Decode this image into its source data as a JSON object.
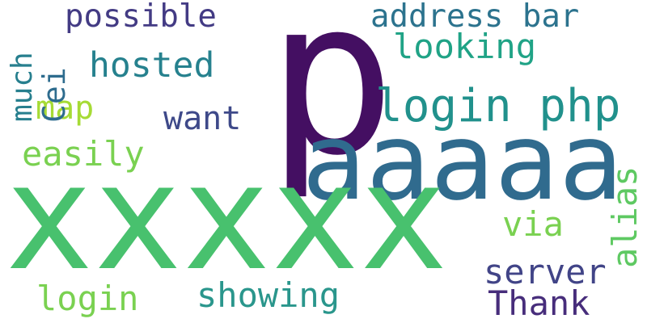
{
  "words": {
    "p": {
      "text": "p",
      "color": "#440f62"
    },
    "aaaaa": {
      "text": "aaaaa",
      "color": "#306b8e"
    },
    "xxxxx": {
      "text": "xxxxx",
      "color": "#48c16e"
    },
    "login_php": {
      "text": "login php",
      "color": "#21918c"
    },
    "possible": {
      "text": "possible",
      "color": "#433b84"
    },
    "address_bar": {
      "text": "address bar",
      "color": "#2c738e"
    },
    "looking": {
      "text": "looking",
      "color": "#20a386"
    },
    "hosted": {
      "text": "hosted",
      "color": "#26818e"
    },
    "map": {
      "text": "map",
      "color": "#a6db35"
    },
    "want": {
      "text": "want",
      "color": "#3e4989"
    },
    "easily": {
      "text": "easily",
      "color": "#7ad151"
    },
    "much": {
      "text": "much",
      "color": "#277f8e"
    },
    "cei": {
      "text": "Cei",
      "color": "#2e6c8e"
    },
    "via": {
      "text": "via",
      "color": "#7ad151"
    },
    "alias": {
      "text": "alias",
      "color": "#5ec962"
    },
    "server": {
      "text": "server",
      "color": "#414487"
    },
    "thank": {
      "text": "Thank",
      "color": "#472d7b"
    },
    "showing": {
      "text": "showing",
      "color": "#2a968c"
    },
    "login": {
      "text": "login",
      "color": "#7ad151"
    }
  }
}
